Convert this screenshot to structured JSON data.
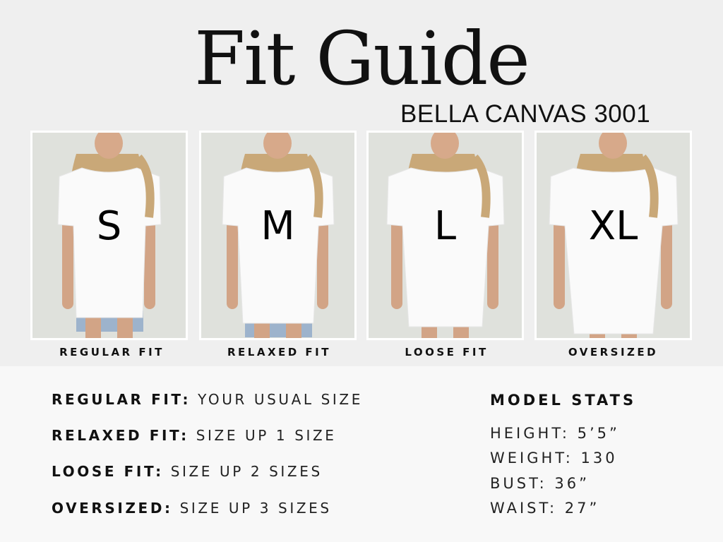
{
  "title": "Fit Guide",
  "subtitle": "BELLA CANVAS 3001",
  "cards": [
    {
      "size": "S",
      "caption": "REGULAR FIT"
    },
    {
      "size": "M",
      "caption": "RELAXED FIT"
    },
    {
      "size": "L",
      "caption": "LOOSE FIT"
    },
    {
      "size": "XL",
      "caption": "OVERSIZED"
    }
  ],
  "fits": [
    {
      "label": "REGULAR FIT:",
      "value": "YOUR USUAL SIZE"
    },
    {
      "label": "RELAXED FIT:",
      "value": "SIZE UP 1 SIZE"
    },
    {
      "label": "LOOSE FIT:",
      "value": "SIZE UP 2 SIZES"
    },
    {
      "label": "OVERSIZED:",
      "value": "SIZE UP 3 SIZES"
    }
  ],
  "model_stats": {
    "heading": "MODEL STATS",
    "items": [
      "HEIGHT: 5’5”",
      "WEIGHT: 130",
      "BUST: 36”",
      "WAIST: 27”"
    ]
  }
}
